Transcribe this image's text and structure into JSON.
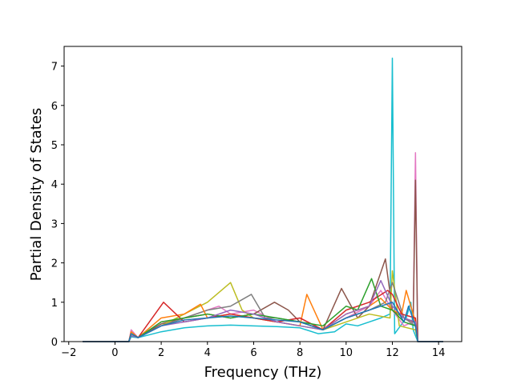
{
  "chart_data": {
    "type": "line",
    "title": "",
    "xlabel": "Frequency (THz)",
    "ylabel": "Partial Density of States",
    "xlim": [
      -2.2,
      15.0
    ],
    "ylim": [
      0,
      7.5
    ],
    "xticks": [
      -2,
      0,
      2,
      4,
      6,
      8,
      10,
      12,
      14
    ],
    "yticks": [
      0,
      1,
      2,
      3,
      4,
      5,
      6,
      7
    ],
    "xtick_labels": [
      "−2",
      "0",
      "2",
      "4",
      "6",
      "8",
      "10",
      "12",
      "14"
    ],
    "ytick_labels": [
      "0",
      "1",
      "2",
      "3",
      "4",
      "5",
      "6",
      "7"
    ],
    "grid": false,
    "legend": "none",
    "x_range_of_data": [
      -1.4,
      14.2
    ],
    "series_count": 30,
    "colors": [
      "#1f77b4",
      "#ff7f0e",
      "#2ca02c",
      "#d62728",
      "#9467bd",
      "#8c564b",
      "#e377c2",
      "#7f7f7f",
      "#bcbd22",
      "#17becf"
    ],
    "series": [
      {
        "color": "#17becf",
        "x": [
          -1.4,
          0.0,
          0.6,
          0.7,
          1.0,
          2.0,
          3.0,
          4.0,
          5.0,
          6.0,
          7.0,
          8.0,
          8.8,
          9.5,
          10.0,
          10.5,
          11.0,
          11.5,
          11.9,
          12.0,
          12.1,
          12.6,
          12.8,
          12.9,
          13.1,
          14.2
        ],
        "y": [
          0,
          0,
          0,
          0.12,
          0.1,
          0.25,
          0.35,
          0.4,
          0.42,
          0.4,
          0.38,
          0.35,
          0.2,
          0.25,
          0.45,
          0.4,
          0.5,
          0.6,
          0.7,
          7.2,
          0.2,
          0.6,
          1.0,
          0.3,
          0,
          0
        ]
      },
      {
        "color": "#e377c2",
        "x": [
          -1.4,
          0.0,
          0.6,
          0.7,
          1.0,
          2.0,
          3.0,
          4.0,
          4.5,
          5.0,
          6.0,
          7.0,
          8.0,
          9.0,
          10.0,
          11.0,
          11.5,
          12.0,
          12.5,
          12.9,
          13.0,
          13.1,
          14.2
        ],
        "y": [
          0,
          0,
          0,
          0.3,
          0.1,
          0.5,
          0.6,
          0.8,
          0.9,
          0.7,
          0.8,
          0.5,
          0.6,
          0.3,
          0.6,
          0.9,
          1.3,
          0.8,
          0.4,
          0.5,
          4.8,
          0,
          0
        ]
      },
      {
        "color": "#8c564b",
        "x": [
          -1.4,
          0.0,
          0.6,
          0.7,
          1.0,
          2.0,
          3.0,
          4.0,
          5.0,
          6.0,
          6.9,
          7.5,
          8.0,
          9.0,
          9.8,
          10.5,
          11.0,
          11.7,
          12.0,
          12.5,
          12.9,
          13.0,
          13.1,
          14.2
        ],
        "y": [
          0,
          0,
          0,
          0.2,
          0.1,
          0.45,
          0.6,
          0.7,
          0.6,
          0.7,
          1.0,
          0.8,
          0.5,
          0.3,
          1.35,
          0.6,
          0.9,
          2.1,
          0.8,
          0.6,
          0.5,
          4.1,
          0,
          0
        ]
      },
      {
        "color": "#bcbd22",
        "x": [
          -1.4,
          0.0,
          0.6,
          0.7,
          1.0,
          2.0,
          3.0,
          4.0,
          5.0,
          5.5,
          6.0,
          7.0,
          8.0,
          9.0,
          10.0,
          11.0,
          11.9,
          12.0,
          12.3,
          13.0,
          13.1,
          14.2
        ],
        "y": [
          0,
          0,
          0,
          0.15,
          0.1,
          0.4,
          0.7,
          1.0,
          1.5,
          0.8,
          0.6,
          0.5,
          0.4,
          0.3,
          0.5,
          0.7,
          0.6,
          1.8,
          0.4,
          0.3,
          0,
          0
        ]
      },
      {
        "color": "#7f7f7f",
        "x": [
          -1.4,
          0.0,
          0.6,
          0.7,
          1.0,
          2.0,
          3.0,
          4.0,
          5.0,
          5.9,
          6.5,
          7.0,
          8.0,
          9.0,
          10.0,
          11.0,
          11.7,
          12.0,
          12.5,
          13.0,
          13.1,
          14.2
        ],
        "y": [
          0,
          0,
          0,
          0.2,
          0.1,
          0.4,
          0.6,
          0.8,
          0.9,
          1.2,
          0.6,
          0.6,
          0.5,
          0.3,
          0.6,
          0.8,
          1.0,
          1.5,
          0.6,
          0.4,
          0,
          0
        ]
      },
      {
        "color": "#ff7f0e",
        "x": [
          -1.4,
          0.0,
          0.6,
          0.7,
          1.0,
          2.0,
          3.0,
          3.7,
          4.0,
          5.0,
          6.0,
          7.0,
          8.0,
          8.3,
          9.0,
          10.0,
          11.0,
          11.5,
          12.0,
          12.4,
          12.6,
          13.0,
          13.1,
          14.2
        ],
        "y": [
          0,
          0,
          0,
          0.25,
          0.1,
          0.6,
          0.7,
          0.95,
          0.6,
          0.7,
          0.6,
          0.5,
          0.4,
          1.2,
          0.3,
          0.7,
          0.9,
          1.1,
          0.8,
          0.7,
          1.3,
          0.5,
          0,
          0
        ]
      },
      {
        "color": "#d62728",
        "x": [
          -1.4,
          0.0,
          0.6,
          0.7,
          1.0,
          2.1,
          3.0,
          4.0,
          5.0,
          6.0,
          7.0,
          8.0,
          9.0,
          10.0,
          11.0,
          11.8,
          12.0,
          12.4,
          13.0,
          13.1,
          14.2
        ],
        "y": [
          0,
          0,
          0,
          0.2,
          0.1,
          1.0,
          0.5,
          0.6,
          0.7,
          0.6,
          0.5,
          0.6,
          0.3,
          0.8,
          1.0,
          1.3,
          1.2,
          0.7,
          0.6,
          0,
          0
        ]
      },
      {
        "color": "#2ca02c",
        "x": [
          -1.4,
          0.0,
          0.6,
          0.7,
          1.0,
          2.0,
          3.0,
          4.0,
          5.0,
          6.0,
          7.0,
          8.0,
          9.0,
          10.0,
          10.5,
          11.1,
          11.5,
          12.0,
          12.5,
          13.0,
          13.1,
          14.2
        ],
        "y": [
          0,
          0,
          0,
          0.2,
          0.1,
          0.5,
          0.6,
          0.7,
          0.6,
          0.7,
          0.6,
          0.5,
          0.4,
          0.9,
          0.8,
          1.6,
          0.9,
          0.8,
          0.5,
          0.4,
          0,
          0
        ]
      },
      {
        "color": "#9467bd",
        "x": [
          -1.4,
          0.0,
          0.6,
          0.7,
          1.0,
          2.0,
          3.0,
          4.0,
          5.0,
          6.0,
          7.0,
          8.0,
          9.0,
          10.0,
          11.0,
          11.5,
          12.0,
          12.5,
          13.0,
          13.1,
          14.2
        ],
        "y": [
          0,
          0,
          0,
          0.15,
          0.1,
          0.4,
          0.5,
          0.6,
          0.8,
          0.7,
          0.5,
          0.4,
          0.3,
          0.7,
          0.9,
          1.55,
          0.9,
          0.6,
          0.5,
          0,
          0
        ]
      },
      {
        "color": "#1f77b4",
        "x": [
          -1.4,
          0.0,
          0.6,
          0.7,
          1.0,
          2.0,
          3.0,
          4.0,
          5.0,
          6.0,
          7.0,
          8.0,
          9.0,
          10.0,
          11.0,
          12.0,
          12.5,
          12.7,
          13.0,
          13.1,
          14.2
        ],
        "y": [
          0,
          0,
          0,
          0.2,
          0.1,
          0.4,
          0.55,
          0.6,
          0.65,
          0.6,
          0.55,
          0.5,
          0.3,
          0.6,
          0.8,
          1.0,
          0.5,
          0.9,
          0.4,
          0,
          0
        ]
      }
    ]
  }
}
